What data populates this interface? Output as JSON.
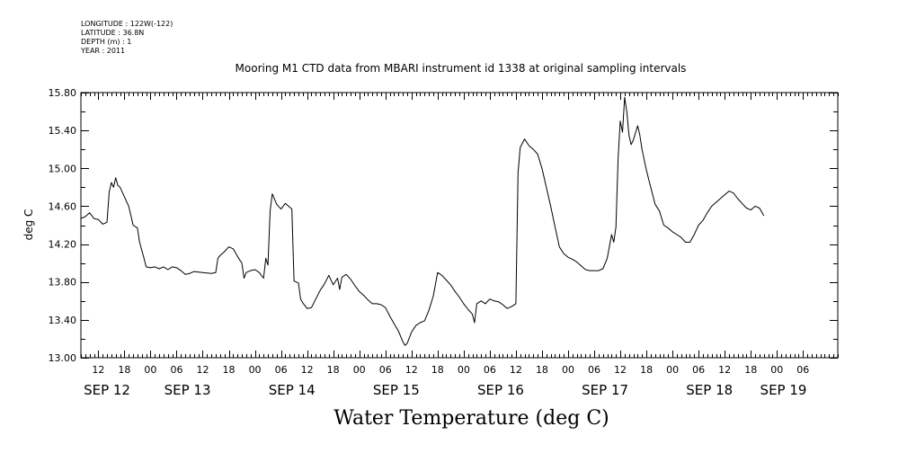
{
  "header": {
    "longitude": "LONGITUDE : 122W(-122)",
    "latitude": "LATITUDE : 36.8N",
    "depth": "DEPTH (m) : 1",
    "year": "YEAR : 2011"
  },
  "chart_data": {
    "type": "line",
    "title": "Mooring M1 CTD data from MBARI instrument id 1338 at original sampling intervals",
    "big_title": "Water Temperature (deg C)",
    "xlabel": "",
    "ylabel": "deg C",
    "ylim": [
      13.0,
      15.8
    ],
    "yticks": [
      "13.00",
      "13.40",
      "13.80",
      "14.20",
      "14.60",
      "15.00",
      "15.40",
      "15.80"
    ],
    "xlim_hours": [
      0,
      174
    ],
    "hour_ticks": [
      {
        "t": 4,
        "label": "12"
      },
      {
        "t": 10,
        "label": "18"
      },
      {
        "t": 16,
        "label": "00"
      },
      {
        "t": 22,
        "label": "06"
      },
      {
        "t": 28,
        "label": "12"
      },
      {
        "t": 34,
        "label": "18"
      },
      {
        "t": 40,
        "label": "00"
      },
      {
        "t": 46,
        "label": "06"
      },
      {
        "t": 52,
        "label": "12"
      },
      {
        "t": 58,
        "label": "18"
      },
      {
        "t": 64,
        "label": "00"
      },
      {
        "t": 70,
        "label": "06"
      },
      {
        "t": 76,
        "label": "12"
      },
      {
        "t": 82,
        "label": "18"
      },
      {
        "t": 88,
        "label": "00"
      },
      {
        "t": 94,
        "label": "06"
      },
      {
        "t": 100,
        "label": "12"
      },
      {
        "t": 106,
        "label": "18"
      },
      {
        "t": 112,
        "label": "00"
      },
      {
        "t": 118,
        "label": "06"
      },
      {
        "t": 124,
        "label": "12"
      },
      {
        "t": 130,
        "label": "18"
      },
      {
        "t": 136,
        "label": "00"
      },
      {
        "t": 142,
        "label": "06"
      },
      {
        "t": 148,
        "label": "12"
      },
      {
        "t": 154,
        "label": "18"
      },
      {
        "t": 160,
        "label": "00"
      },
      {
        "t": 166,
        "label": "06"
      }
    ],
    "date_labels": [
      {
        "t": 6,
        "label": "SEP 12"
      },
      {
        "t": 24.5,
        "label": "SEP 13"
      },
      {
        "t": 48.5,
        "label": "SEP 14"
      },
      {
        "t": 72.5,
        "label": "SEP 15"
      },
      {
        "t": 96.5,
        "label": "SEP 16"
      },
      {
        "t": 120.5,
        "label": "SEP 17"
      },
      {
        "t": 144.5,
        "label": "SEP 18"
      },
      {
        "t": 161.5,
        "label": "SEP 19"
      }
    ],
    "series": [
      {
        "name": "",
        "points": [
          [
            0,
            14.47
          ],
          [
            1,
            14.49
          ],
          [
            2,
            14.53
          ],
          [
            3,
            14.47
          ],
          [
            4,
            14.46
          ],
          [
            5,
            14.41
          ],
          [
            6,
            14.43
          ],
          [
            6.5,
            14.75
          ],
          [
            7,
            14.85
          ],
          [
            7.5,
            14.8
          ],
          [
            8,
            14.9
          ],
          [
            8.5,
            14.82
          ],
          [
            9,
            14.8
          ],
          [
            10,
            14.7
          ],
          [
            11,
            14.6
          ],
          [
            12,
            14.4
          ],
          [
            13,
            14.37
          ],
          [
            13.5,
            14.22
          ],
          [
            14.5,
            14.05
          ],
          [
            15,
            13.96
          ],
          [
            16,
            13.95
          ],
          [
            17,
            13.96
          ],
          [
            18,
            13.94
          ],
          [
            19,
            13.96
          ],
          [
            20,
            13.93
          ],
          [
            21,
            13.96
          ],
          [
            22,
            13.95
          ],
          [
            23,
            13.92
          ],
          [
            24,
            13.88
          ],
          [
            25,
            13.89
          ],
          [
            26,
            13.91
          ],
          [
            28,
            13.9
          ],
          [
            30,
            13.89
          ],
          [
            31,
            13.9
          ],
          [
            31.5,
            14.05
          ],
          [
            32,
            14.08
          ],
          [
            33,
            14.12
          ],
          [
            34,
            14.17
          ],
          [
            35,
            14.15
          ],
          [
            36,
            14.07
          ],
          [
            37,
            14.0
          ],
          [
            37.5,
            13.84
          ],
          [
            38,
            13.9
          ],
          [
            39,
            13.92
          ],
          [
            40,
            13.93
          ],
          [
            41,
            13.9
          ],
          [
            42,
            13.84
          ],
          [
            42.5,
            14.05
          ],
          [
            43,
            13.98
          ],
          [
            43.5,
            14.55
          ],
          [
            44,
            14.73
          ],
          [
            45,
            14.62
          ],
          [
            46,
            14.57
          ],
          [
            47,
            14.63
          ],
          [
            48,
            14.59
          ],
          [
            48.5,
            14.57
          ],
          [
            49,
            13.81
          ],
          [
            50,
            13.79
          ],
          [
            50.5,
            13.62
          ],
          [
            51,
            13.58
          ],
          [
            52,
            13.52
          ],
          [
            53,
            13.53
          ],
          [
            54,
            13.62
          ],
          [
            55,
            13.71
          ],
          [
            56,
            13.78
          ],
          [
            57,
            13.87
          ],
          [
            58,
            13.77
          ],
          [
            59,
            13.84
          ],
          [
            59.5,
            13.72
          ],
          [
            60,
            13.85
          ],
          [
            61,
            13.88
          ],
          [
            62,
            13.83
          ],
          [
            63,
            13.76
          ],
          [
            64,
            13.7
          ],
          [
            65,
            13.66
          ],
          [
            66,
            13.61
          ],
          [
            67,
            13.57
          ],
          [
            68,
            13.57
          ],
          [
            69,
            13.56
          ],
          [
            70,
            13.53
          ],
          [
            71,
            13.44
          ],
          [
            72,
            13.36
          ],
          [
            73,
            13.28
          ],
          [
            74,
            13.17
          ],
          [
            74.5,
            13.13
          ],
          [
            75,
            13.15
          ],
          [
            76,
            13.27
          ],
          [
            77,
            13.34
          ],
          [
            78,
            13.37
          ],
          [
            79,
            13.39
          ],
          [
            80,
            13.5
          ],
          [
            81,
            13.65
          ],
          [
            82,
            13.9
          ],
          [
            83,
            13.87
          ],
          [
            84,
            13.82
          ],
          [
            85,
            13.77
          ],
          [
            86,
            13.7
          ],
          [
            87,
            13.64
          ],
          [
            88,
            13.57
          ],
          [
            89,
            13.51
          ],
          [
            90,
            13.46
          ],
          [
            90.5,
            13.37
          ],
          [
            91,
            13.57
          ],
          [
            92,
            13.6
          ],
          [
            93,
            13.57
          ],
          [
            94,
            13.62
          ],
          [
            95,
            13.6
          ],
          [
            96,
            13.59
          ],
          [
            97,
            13.56
          ],
          [
            98,
            13.52
          ],
          [
            99,
            13.54
          ],
          [
            100,
            13.57
          ],
          [
            100.5,
            14.95
          ],
          [
            101,
            15.22
          ],
          [
            102,
            15.31
          ],
          [
            103,
            15.24
          ],
          [
            104,
            15.2
          ],
          [
            105,
            15.15
          ],
          [
            106,
            15.0
          ],
          [
            107,
            14.8
          ],
          [
            108,
            14.6
          ],
          [
            109,
            14.38
          ],
          [
            110,
            14.17
          ],
          [
            111,
            14.1
          ],
          [
            112,
            14.06
          ],
          [
            113,
            14.04
          ],
          [
            114,
            14.01
          ],
          [
            115,
            13.97
          ],
          [
            116,
            13.93
          ],
          [
            117,
            13.92
          ],
          [
            118,
            13.92
          ],
          [
            119,
            13.92
          ],
          [
            120,
            13.94
          ],
          [
            121,
            14.05
          ],
          [
            122,
            14.3
          ],
          [
            122.5,
            14.22
          ],
          [
            123,
            14.38
          ],
          [
            123.5,
            15.1
          ],
          [
            124,
            15.5
          ],
          [
            124.5,
            15.38
          ],
          [
            125,
            15.75
          ],
          [
            125.5,
            15.6
          ],
          [
            126,
            15.35
          ],
          [
            126.5,
            15.25
          ],
          [
            127,
            15.3
          ],
          [
            128,
            15.45
          ],
          [
            128.5,
            15.35
          ],
          [
            129,
            15.2
          ],
          [
            130,
            14.98
          ],
          [
            131,
            14.8
          ],
          [
            132,
            14.62
          ],
          [
            133,
            14.55
          ],
          [
            134,
            14.4
          ],
          [
            135,
            14.37
          ],
          [
            136,
            14.33
          ],
          [
            137,
            14.3
          ],
          [
            138,
            14.27
          ],
          [
            139,
            14.22
          ],
          [
            140,
            14.22
          ],
          [
            141,
            14.3
          ],
          [
            142,
            14.4
          ],
          [
            143,
            14.45
          ],
          [
            144,
            14.53
          ],
          [
            145,
            14.6
          ],
          [
            146,
            14.64
          ],
          [
            147,
            14.68
          ],
          [
            148,
            14.72
          ],
          [
            149,
            14.76
          ],
          [
            150,
            14.74
          ],
          [
            151,
            14.68
          ],
          [
            152,
            14.63
          ],
          [
            153,
            14.58
          ],
          [
            154,
            14.56
          ],
          [
            155,
            14.6
          ],
          [
            156,
            14.58
          ],
          [
            157,
            14.5
          ]
        ]
      }
    ]
  }
}
